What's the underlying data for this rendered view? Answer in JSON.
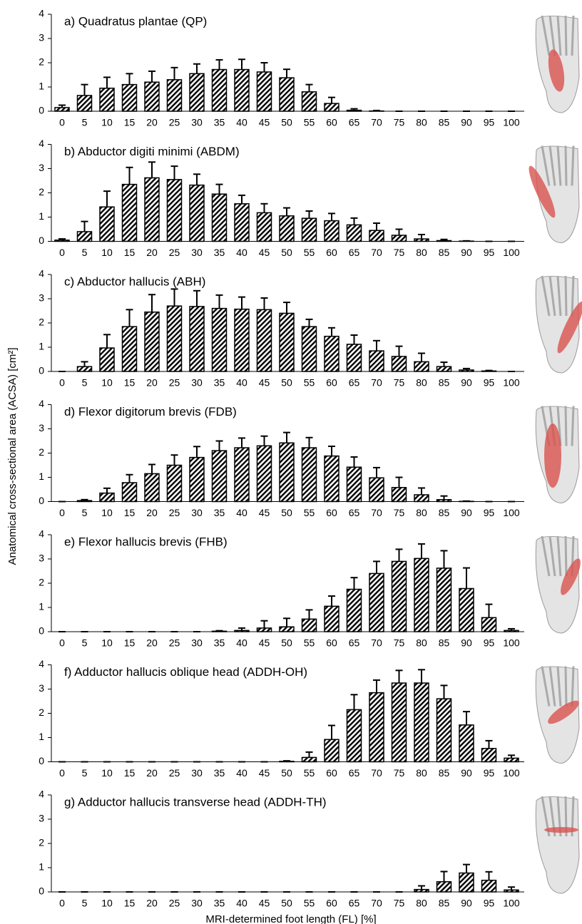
{
  "figure": {
    "y_label": "Anatomical cross-sectional area (ACSA) [cm²]"
  },
  "chart_data": [
    {
      "type": "bar",
      "title": "a) Quadratus plantae (QP)",
      "categories": [
        "0",
        "5",
        "10",
        "15",
        "20",
        "25",
        "30",
        "35",
        "40",
        "45",
        "50",
        "55",
        "60",
        "65",
        "70",
        "75",
        "80",
        "85",
        "90",
        "95",
        "100"
      ],
      "values": [
        0.15,
        0.65,
        0.95,
        1.1,
        1.2,
        1.3,
        1.55,
        1.72,
        1.72,
        1.62,
        1.38,
        0.8,
        0.32,
        0.04,
        0.01,
        0,
        0,
        0,
        0,
        0,
        0
      ],
      "errors": [
        0.1,
        0.45,
        0.45,
        0.45,
        0.45,
        0.5,
        0.4,
        0.4,
        0.42,
        0.38,
        0.35,
        0.3,
        0.25,
        0.06,
        0.02,
        0,
        0,
        0,
        0,
        0,
        0
      ],
      "color": "#000000",
      "ylim": [
        0,
        4
      ],
      "yticks": [
        0,
        1,
        2,
        3,
        4
      ]
    },
    {
      "type": "bar",
      "title": "b) Abductor digiti minimi (ABDM)",
      "categories": [
        "0",
        "5",
        "10",
        "15",
        "20",
        "25",
        "30",
        "35",
        "40",
        "45",
        "50",
        "55",
        "60",
        "65",
        "70",
        "75",
        "80",
        "85",
        "90",
        "95",
        "100"
      ],
      "values": [
        0.05,
        0.4,
        1.42,
        2.35,
        2.62,
        2.55,
        2.32,
        1.95,
        1.55,
        1.18,
        1.05,
        0.95,
        0.85,
        0.68,
        0.45,
        0.25,
        0.1,
        0.03,
        0.01,
        0,
        0
      ],
      "errors": [
        0.05,
        0.42,
        0.65,
        0.7,
        0.65,
        0.55,
        0.45,
        0.4,
        0.35,
        0.37,
        0.33,
        0.3,
        0.3,
        0.28,
        0.3,
        0.25,
        0.18,
        0.05,
        0.01,
        0,
        0
      ],
      "color": "#000000",
      "ylim": [
        0,
        4
      ],
      "yticks": [
        0,
        1,
        2,
        3,
        4
      ]
    },
    {
      "type": "bar",
      "title": "c) Abductor hallucis (ABH)",
      "categories": [
        "0",
        "5",
        "10",
        "15",
        "20",
        "25",
        "30",
        "35",
        "40",
        "45",
        "50",
        "55",
        "60",
        "65",
        "70",
        "75",
        "80",
        "85",
        "90",
        "95",
        "100"
      ],
      "values": [
        0,
        0.2,
        0.97,
        1.85,
        2.45,
        2.7,
        2.68,
        2.6,
        2.57,
        2.55,
        2.4,
        1.85,
        1.45,
        1.12,
        0.85,
        0.62,
        0.4,
        0.2,
        0.06,
        0.02,
        0
      ],
      "errors": [
        0,
        0.2,
        0.55,
        0.7,
        0.72,
        0.7,
        0.65,
        0.55,
        0.5,
        0.48,
        0.45,
        0.3,
        0.35,
        0.38,
        0.42,
        0.42,
        0.35,
        0.18,
        0.06,
        0.02,
        0
      ],
      "color": "#000000",
      "ylim": [
        0,
        4
      ],
      "yticks": [
        0,
        1,
        2,
        3,
        4
      ]
    },
    {
      "type": "bar",
      "title": "d) Flexor digitorum brevis (FDB)",
      "categories": [
        "0",
        "5",
        "10",
        "15",
        "20",
        "25",
        "30",
        "35",
        "40",
        "45",
        "50",
        "55",
        "60",
        "65",
        "70",
        "75",
        "80",
        "85",
        "90",
        "95",
        "100"
      ],
      "values": [
        0,
        0.04,
        0.35,
        0.78,
        1.15,
        1.5,
        1.82,
        2.1,
        2.22,
        2.3,
        2.42,
        2.22,
        1.88,
        1.42,
        0.98,
        0.58,
        0.28,
        0.08,
        0.01,
        0,
        0
      ],
      "errors": [
        0,
        0.04,
        0.2,
        0.33,
        0.38,
        0.42,
        0.45,
        0.4,
        0.4,
        0.4,
        0.43,
        0.42,
        0.4,
        0.42,
        0.42,
        0.42,
        0.28,
        0.15,
        0.01,
        0,
        0
      ],
      "color": "#000000",
      "ylim": [
        0,
        4
      ],
      "yticks": [
        0,
        1,
        2,
        3,
        4
      ]
    },
    {
      "type": "bar",
      "title": "e) Flexor hallucis brevis (FHB)",
      "categories": [
        "0",
        "5",
        "10",
        "15",
        "20",
        "25",
        "30",
        "35",
        "40",
        "45",
        "50",
        "55",
        "60",
        "65",
        "70",
        "75",
        "80",
        "85",
        "90",
        "95",
        "100"
      ],
      "values": [
        0,
        0,
        0,
        0,
        0,
        0,
        0,
        0.02,
        0.05,
        0.15,
        0.2,
        0.52,
        1.05,
        1.75,
        2.4,
        2.9,
        3.02,
        2.62,
        1.78,
        0.58,
        0.05
      ],
      "errors": [
        0,
        0,
        0,
        0,
        0,
        0,
        0,
        0.02,
        0.1,
        0.3,
        0.35,
        0.38,
        0.42,
        0.48,
        0.5,
        0.5,
        0.6,
        0.72,
        0.85,
        0.55,
        0.07
      ],
      "color": "#000000",
      "ylim": [
        0,
        4
      ],
      "yticks": [
        0,
        1,
        2,
        3,
        4
      ]
    },
    {
      "type": "bar",
      "title": "f) Adductor hallucis oblique head (ADDH-OH)",
      "categories": [
        "0",
        "5",
        "10",
        "15",
        "20",
        "25",
        "30",
        "35",
        "40",
        "45",
        "50",
        "55",
        "60",
        "65",
        "70",
        "75",
        "80",
        "85",
        "90",
        "95",
        "100"
      ],
      "values": [
        0,
        0,
        0,
        0,
        0,
        0,
        0,
        0,
        0,
        0,
        0.02,
        0.18,
        0.92,
        2.15,
        2.85,
        3.25,
        3.25,
        2.6,
        1.52,
        0.55,
        0.15
      ],
      "errors": [
        0,
        0,
        0,
        0,
        0,
        0,
        0,
        0,
        0,
        0,
        0.02,
        0.22,
        0.58,
        0.62,
        0.52,
        0.52,
        0.55,
        0.55,
        0.55,
        0.32,
        0.12
      ],
      "color": "#000000",
      "ylim": [
        0,
        4
      ],
      "yticks": [
        0,
        1,
        2,
        3,
        4
      ]
    },
    {
      "type": "bar",
      "title": "g) Adductor hallucis transverse head (ADDH-TH)",
      "x_label": "MRI-determined foot length (FL) [%]",
      "categories": [
        "0",
        "5",
        "10",
        "15",
        "20",
        "25",
        "30",
        "35",
        "40",
        "45",
        "50",
        "55",
        "60",
        "65",
        "70",
        "75",
        "80",
        "85",
        "90",
        "95",
        "100"
      ],
      "values": [
        0,
        0,
        0,
        0,
        0,
        0,
        0,
        0,
        0,
        0,
        0,
        0,
        0,
        0,
        0,
        0,
        0.1,
        0.42,
        0.78,
        0.48,
        0.08
      ],
      "errors": [
        0,
        0,
        0,
        0,
        0,
        0,
        0,
        0,
        0,
        0,
        0,
        0,
        0,
        0,
        0,
        0,
        0.15,
        0.42,
        0.35,
        0.35,
        0.12
      ],
      "color": "#000000",
      "ylim": [
        0,
        4
      ],
      "yticks": [
        0,
        1,
        2,
        3,
        4
      ]
    }
  ]
}
